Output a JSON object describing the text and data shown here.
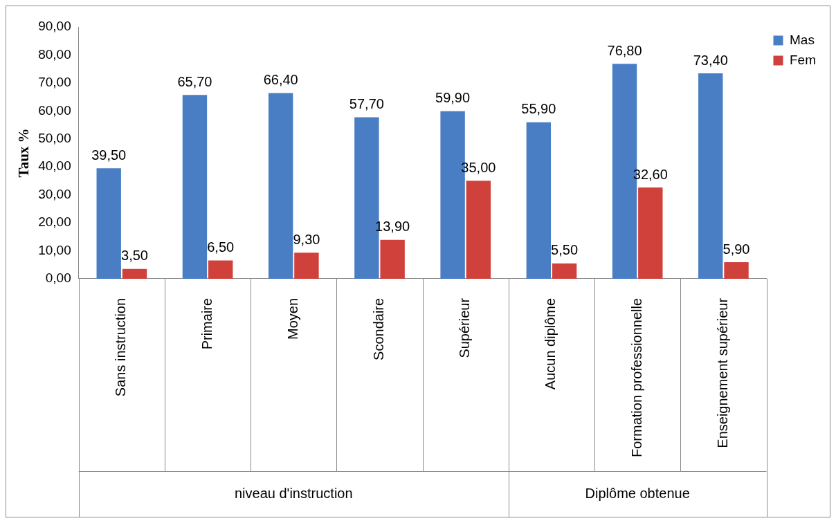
{
  "chart_data": {
    "type": "bar",
    "ylabel": "Taux %",
    "categories": [
      "Sans instruction",
      "Primaire",
      "Moyen",
      "Scondaire",
      "Supérieur",
      "Aucun diplôme",
      "Formation professionnelle",
      "Enseignement supérieur"
    ],
    "series": [
      {
        "name": "Mas",
        "color": "#4a7ec4",
        "values": [
          39.5,
          65.7,
          66.4,
          57.7,
          59.9,
          55.9,
          76.8,
          73.4
        ],
        "value_labels": [
          "39,50",
          "65,70",
          "66,40",
          "57,70",
          "59,90",
          "55,90",
          "76,80",
          "73,40"
        ]
      },
      {
        "name": "Fem",
        "color": "#d0413c",
        "values": [
          3.5,
          6.5,
          9.3,
          13.9,
          35.0,
          5.5,
          32.6,
          5.9
        ],
        "value_labels": [
          "3,50",
          "6,50",
          "9,30",
          "13,90",
          "35,00",
          "5,50",
          "32,60",
          "5,90"
        ]
      }
    ],
    "annotations": [
      "niveau d'instruction",
      "Diplôme obtenue"
    ],
    "ylim": [
      0,
      90
    ],
    "yticks": [
      {
        "value": 0,
        "label": "0,00"
      },
      {
        "value": 10,
        "label": "10,00"
      },
      {
        "value": 20,
        "label": "20,00"
      },
      {
        "value": 30,
        "label": "30,00"
      },
      {
        "value": 40,
        "label": "40,00"
      },
      {
        "value": 50,
        "label": "50,00"
      },
      {
        "value": 60,
        "label": "60,00"
      },
      {
        "value": 70,
        "label": "70,00"
      },
      {
        "value": 80,
        "label": "80,00"
      },
      {
        "value": 90,
        "label": "90,00"
      }
    ],
    "grid": false,
    "legend": "top right"
  }
}
